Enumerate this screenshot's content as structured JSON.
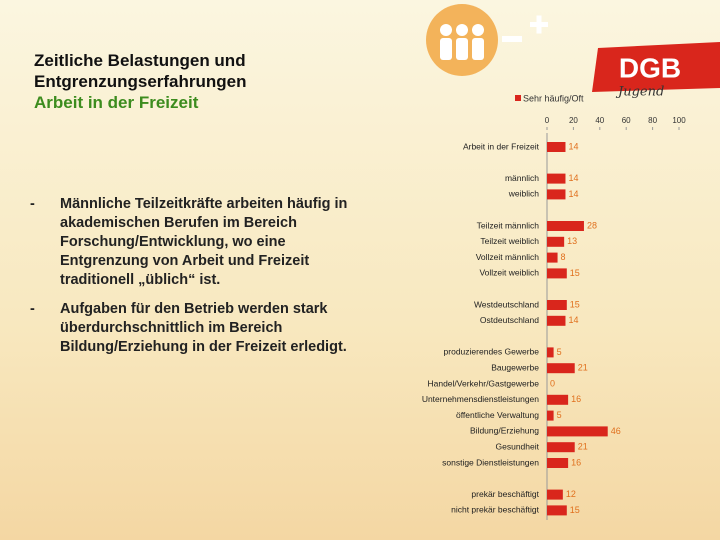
{
  "slide": {
    "title": [
      "Zeitliche Belastungen und",
      "Entgrenzungserfahrungen"
    ],
    "subtitle": "Arbeit in der Freizeit",
    "bullets": [
      "Männliche Teilzeitkräfte arbeiten häufig in akademischen Berufen im Bereich Forschung/Entwicklung, wo eine Entgrenzung von Arbeit und Freizeit traditionell „üblich“ ist.",
      "Aufgaben für den Betrieb werden stark überdurchschnittlich im Bereich Bildung/Erziehung in der Freizeit erledigt."
    ],
    "logo": "DGB",
    "logo_script": "Jugend"
  },
  "chart_data": {
    "type": "hbar",
    "categories": [
      "Arbeit in der Freizeit",
      null,
      "männlich",
      "weiblich",
      null,
      "Teilzeit männlich",
      "Teilzeit weiblich",
      "Vollzeit männlich",
      "Vollzeit weiblich",
      null,
      "Westdeutschland",
      "Ostdeutschland",
      null,
      "produzierendes Gewerbe",
      "Baugewerbe",
      "Handel/Verkehr/Gastgewerbe",
      "Unternehmensdienstleistungen",
      "öffentliche Verwaltung",
      "Bildung/Erziehung",
      "Gesundheit",
      "sonstige Dienstleistungen",
      null,
      "prekär beschäftigt",
      "nicht prekär beschäftigt"
    ],
    "series": [
      {
        "name": "Sehr häufig/Oft",
        "color": "#d9261c",
        "values": [
          14,
          null,
          14,
          14,
          null,
          28,
          13,
          8,
          15,
          null,
          15,
          14,
          null,
          5,
          21,
          0,
          16,
          5,
          46,
          21,
          16,
          null,
          12,
          15
        ]
      }
    ],
    "xlim": [
      0,
      100
    ],
    "xticks": [
      0,
      20,
      40,
      60,
      80,
      100
    ],
    "legend": "top"
  }
}
